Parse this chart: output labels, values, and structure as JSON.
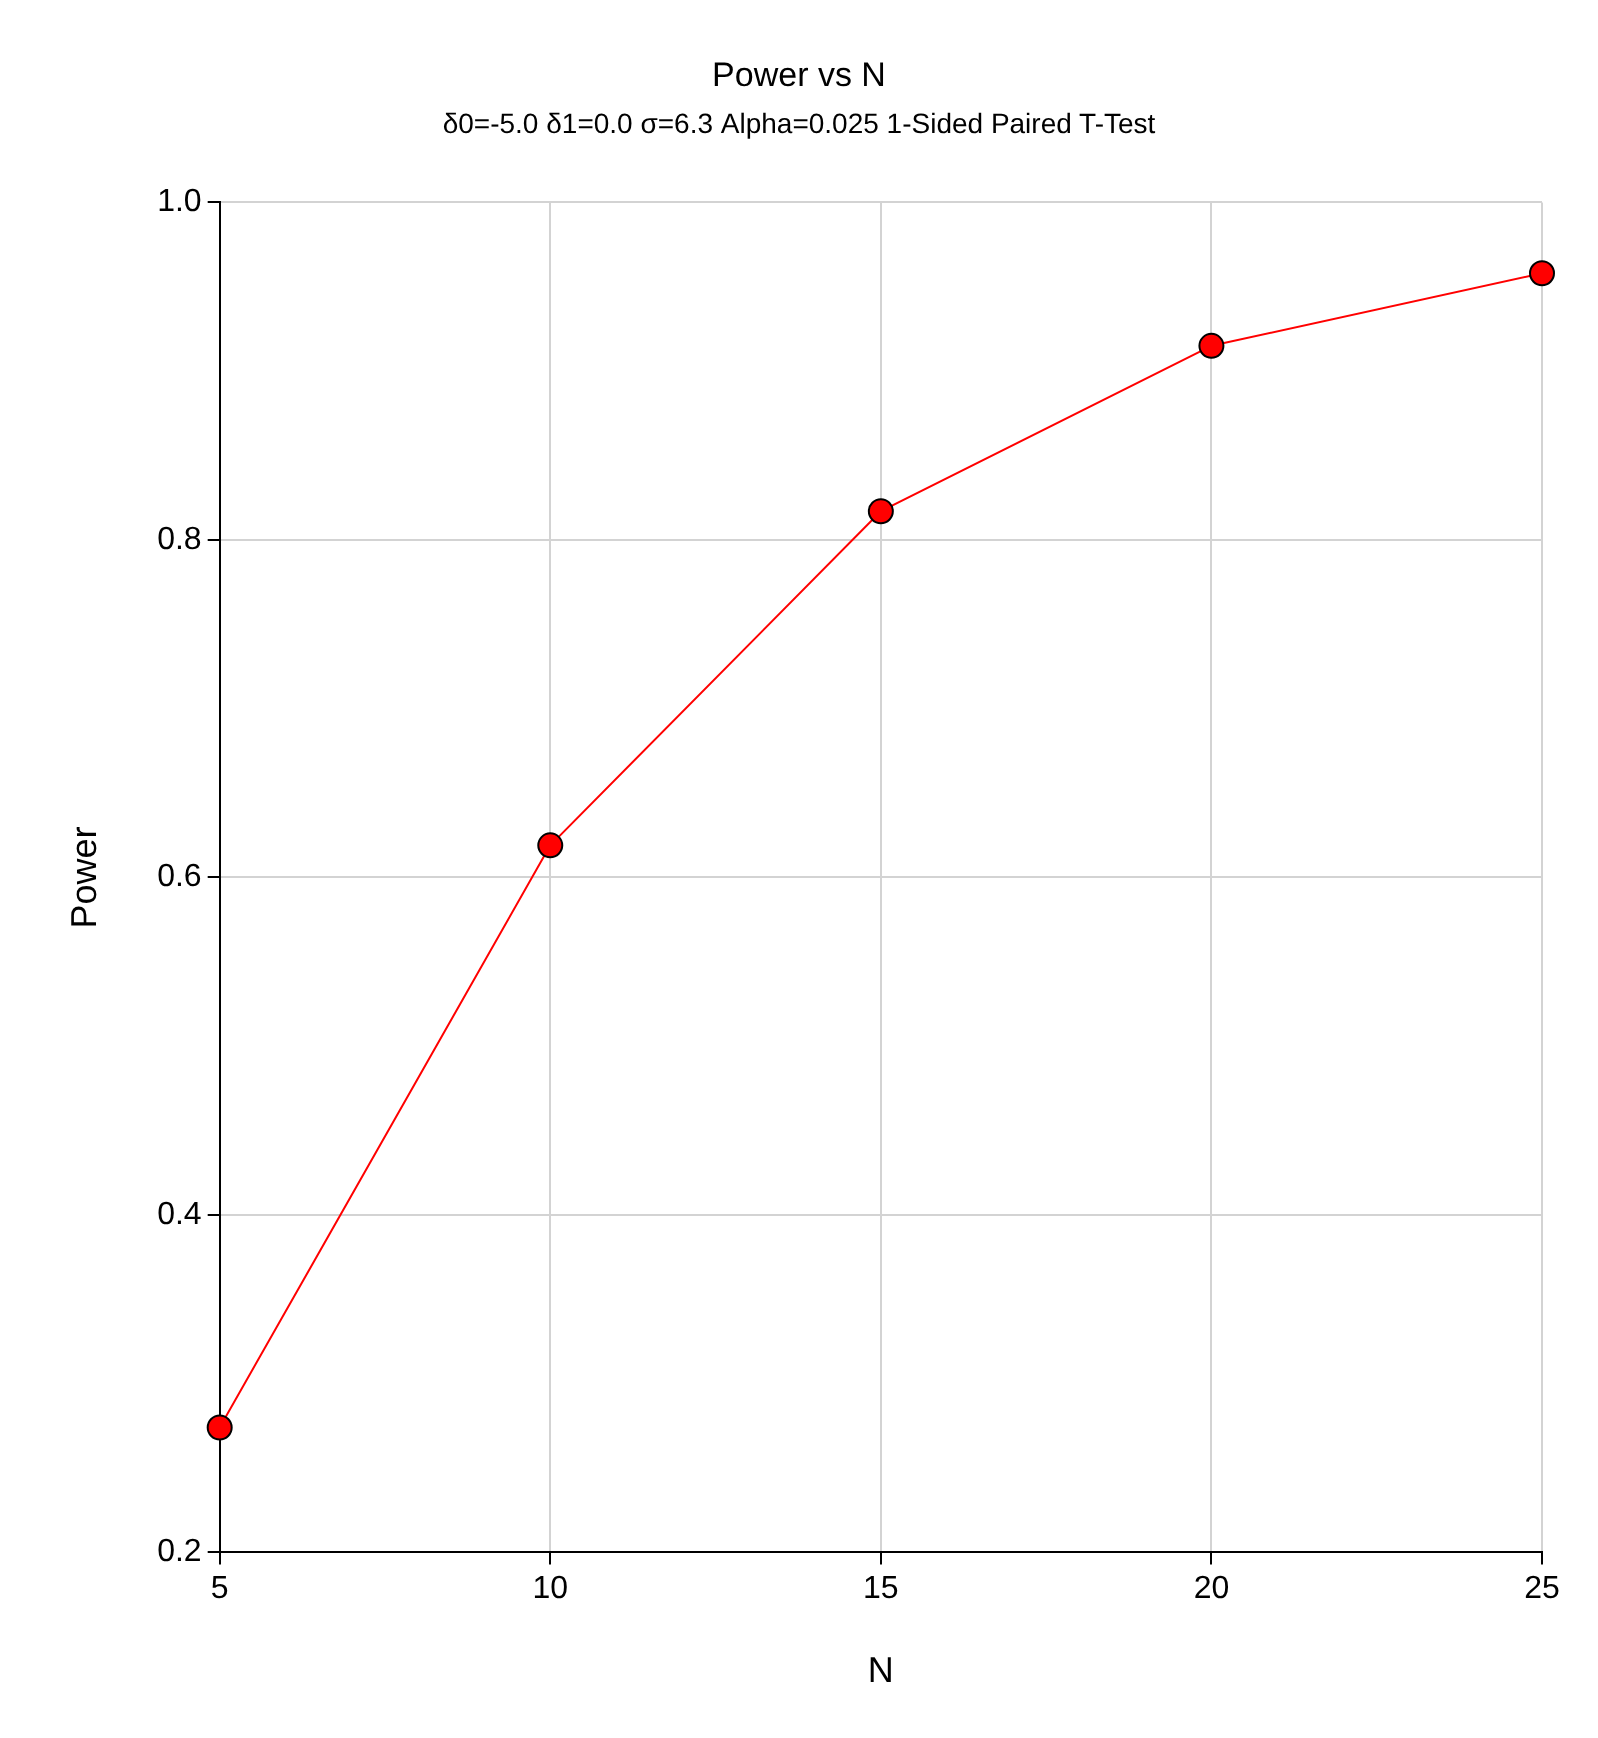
{
  "chart_data": {
    "type": "line",
    "title": "Power vs N",
    "subtitle": "δ0=-5.0 δ1=0.0 σ=6.3 Alpha=0.025 1-Sided Paired T-Test",
    "xlabel": "N",
    "ylabel": "Power",
    "x": [
      5,
      10,
      15,
      20,
      25
    ],
    "series": [
      {
        "color": "#ff0000",
        "values": [
          0.274,
          0.619,
          0.817,
          0.915,
          0.958
        ]
      }
    ],
    "xlim": [
      5,
      25
    ],
    "xticks": [
      5,
      10,
      15,
      20,
      25
    ],
    "ylim": [
      0.2,
      1.0
    ],
    "yticks": [
      0.2,
      0.4,
      0.6,
      0.8,
      {
        "value": 1,
        "label": "1.0"
      }
    ],
    "grid": true,
    "legend": false,
    "marker": "circle",
    "line_style": "solid"
  }
}
